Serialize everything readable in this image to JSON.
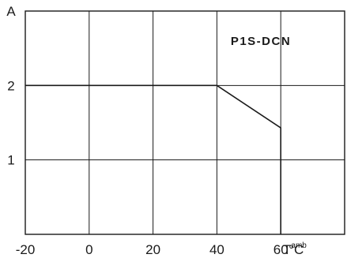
{
  "chart_data": {
    "type": "line",
    "title": "P1S-DCN",
    "ylabel": "A",
    "xlabel_main": "T",
    "xlabel_sub": "amb",
    "x_unit": "°C",
    "xlim": [
      -20,
      80
    ],
    "ylim": [
      0,
      3
    ],
    "x_ticks": [
      -20,
      0,
      20,
      40,
      60
    ],
    "x_tick_labels": [
      "-20",
      "0",
      "20",
      "40",
      "60"
    ],
    "y_ticks": [
      1,
      2
    ],
    "y_tick_labels": [
      "1",
      "2"
    ],
    "y_axis_label_at": 3,
    "grid": true,
    "series": [
      {
        "x": [
          -20,
          40,
          60,
          60
        ],
        "y": [
          2,
          2,
          1.43,
          0
        ]
      }
    ]
  }
}
